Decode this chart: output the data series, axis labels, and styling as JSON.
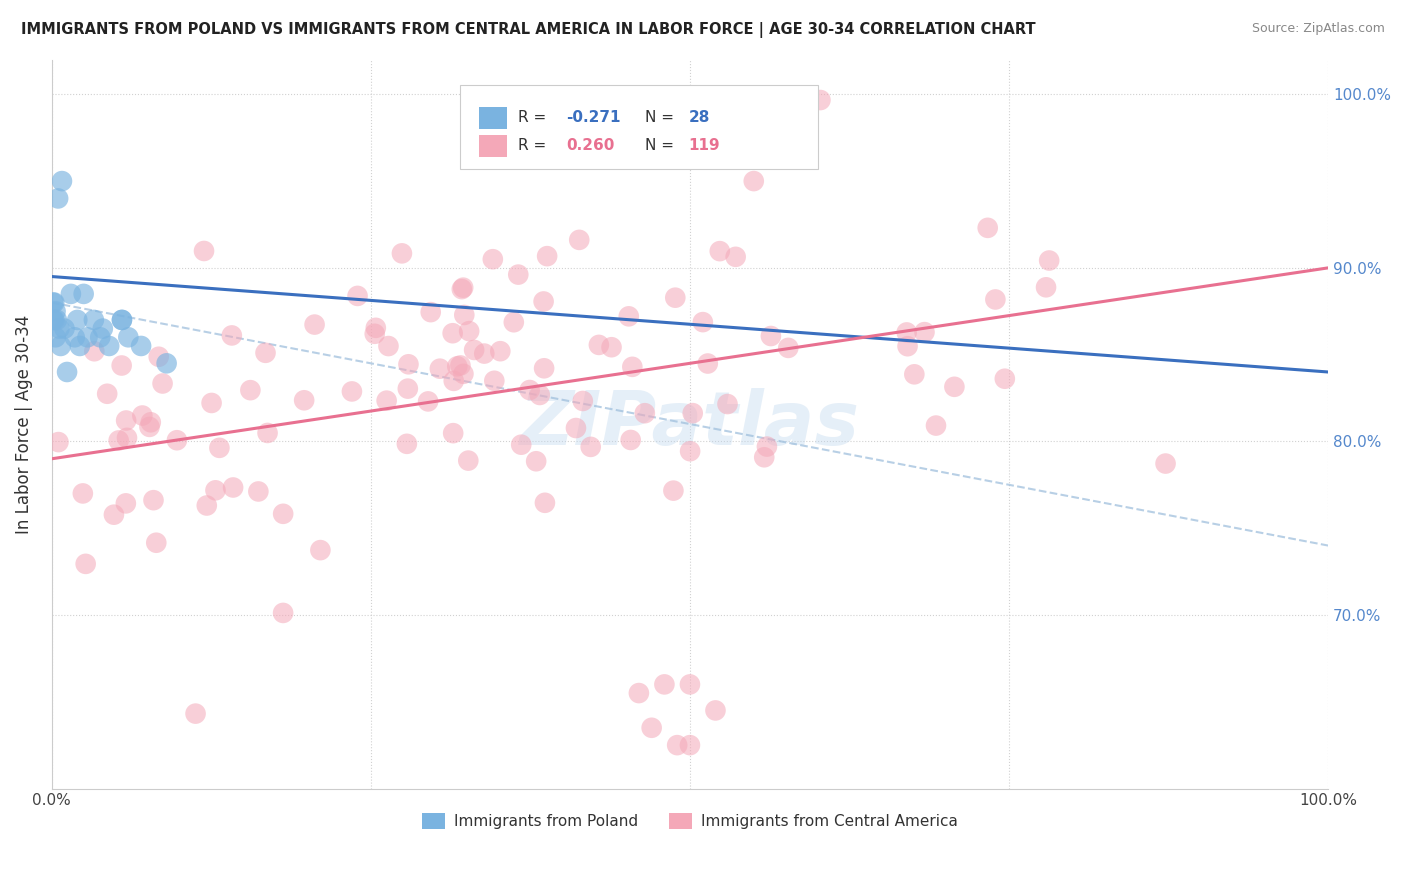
{
  "title": "IMMIGRANTS FROM POLAND VS IMMIGRANTS FROM CENTRAL AMERICA IN LABOR FORCE | AGE 30-34 CORRELATION CHART",
  "source": "Source: ZipAtlas.com",
  "ylabel": "In Labor Force | Age 30-34",
  "legend_poland_r": "-0.271",
  "legend_poland_n": "28",
  "legend_ca_r": "0.260",
  "legend_ca_n": "119",
  "legend_label_poland": "Immigrants from Poland",
  "legend_label_ca": "Immigrants from Central America",
  "color_poland": "#7ab3e0",
  "color_ca": "#f4a8b8",
  "color_poland_line": "#3a6fbf",
  "color_ca_line": "#e87090",
  "color_dashed_line": "#a0c0dd",
  "watermark": "ZIPatlas",
  "xlim": [
    0.0,
    1.0
  ],
  "ylim": [
    0.6,
    1.02
  ],
  "poland_line_x0": 0.0,
  "poland_line_y0": 0.895,
  "poland_line_x1": 1.0,
  "poland_line_y1": 0.84,
  "ca_line_x0": 0.0,
  "ca_line_y0": 0.79,
  "ca_line_x1": 1.0,
  "ca_line_y1": 0.9,
  "dashed_line_x0": 0.0,
  "dashed_line_y0": 0.88,
  "dashed_line_x1": 1.0,
  "dashed_line_y1": 0.74
}
